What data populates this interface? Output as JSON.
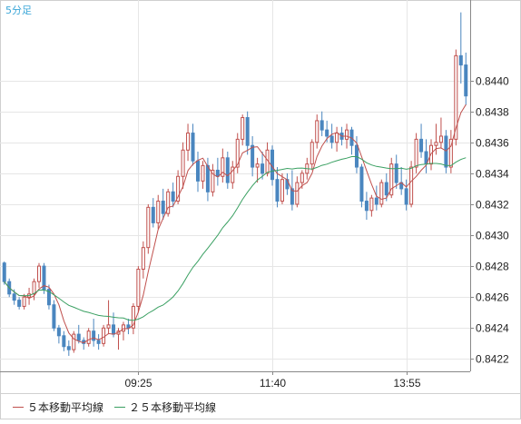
{
  "timeframe": "5分足",
  "colors": {
    "up": "#c0504d",
    "down": "#4a86bf",
    "ma5": "#c0504d",
    "ma25": "#3aa062",
    "grid": "#e6e6e6",
    "axis": "#888888",
    "text": "#222222"
  },
  "legend": {
    "ma5_label": "５本移動平均線",
    "ma25_label": "２５本移動平均線"
  },
  "chart_data": {
    "type": "candlestick",
    "title": "",
    "xlabel": "",
    "ylabel": "",
    "ylim": [
      0.84212,
      0.84452
    ],
    "y_ticks": [
      "0.8422",
      "0.8424",
      "0.8426",
      "0.8428",
      "0.8430",
      "0.8432",
      "0.8434",
      "0.8436",
      "0.8438",
      "0.8440"
    ],
    "x_ticks": [
      {
        "label": "09:25",
        "index": 27
      },
      {
        "label": "11:40",
        "index": 54
      },
      {
        "label": "13:55",
        "index": 81
      }
    ],
    "grid": true,
    "legend_position": "bottom-left",
    "candles": [
      [
        0.84282,
        0.84283,
        0.84268,
        0.8427
      ],
      [
        0.8427,
        0.84272,
        0.8426,
        0.84262
      ],
      [
        0.84262,
        0.84265,
        0.84255,
        0.84258
      ],
      [
        0.84258,
        0.8426,
        0.84252,
        0.84254
      ],
      [
        0.84254,
        0.84262,
        0.84252,
        0.8426
      ],
      [
        0.8426,
        0.84266,
        0.84255,
        0.84262
      ],
      [
        0.84262,
        0.84272,
        0.84258,
        0.8427
      ],
      [
        0.8427,
        0.84282,
        0.84266,
        0.8428
      ],
      [
        0.8428,
        0.84282,
        0.84262,
        0.84265
      ],
      [
        0.84265,
        0.84268,
        0.84252,
        0.84255
      ],
      [
        0.84255,
        0.84258,
        0.84238,
        0.8424
      ],
      [
        0.8424,
        0.84242,
        0.8423,
        0.84235
      ],
      [
        0.84235,
        0.84238,
        0.84225,
        0.84228
      ],
      [
        0.84228,
        0.84232,
        0.84222,
        0.84226
      ],
      [
        0.84226,
        0.84238,
        0.84224,
        0.84236
      ],
      [
        0.84236,
        0.84242,
        0.8423,
        0.84232
      ],
      [
        0.84232,
        0.84234,
        0.84226,
        0.8423
      ],
      [
        0.8423,
        0.8424,
        0.84228,
        0.84238
      ],
      [
        0.84238,
        0.84246,
        0.84228,
        0.84232
      ],
      [
        0.84232,
        0.84236,
        0.84226,
        0.8423
      ],
      [
        0.8423,
        0.84242,
        0.84228,
        0.8424
      ],
      [
        0.8424,
        0.84258,
        0.84236,
        0.84242
      ],
      [
        0.84242,
        0.8425,
        0.84234,
        0.84236
      ],
      [
        0.84236,
        0.8424,
        0.84226,
        0.84238
      ],
      [
        0.84238,
        0.84244,
        0.84232,
        0.84242
      ],
      [
        0.84242,
        0.84246,
        0.84236,
        0.8424
      ],
      [
        0.8424,
        0.84256,
        0.84236,
        0.84254
      ],
      [
        0.84254,
        0.8428,
        0.8425,
        0.84278
      ],
      [
        0.84278,
        0.84296,
        0.84272,
        0.84292
      ],
      [
        0.84292,
        0.8432,
        0.84288,
        0.84318
      ],
      [
        0.84318,
        0.84324,
        0.84305,
        0.84308
      ],
      [
        0.84308,
        0.84326,
        0.84304,
        0.84322
      ],
      [
        0.84322,
        0.8433,
        0.8431,
        0.84314
      ],
      [
        0.84314,
        0.8433,
        0.84312,
        0.84328
      ],
      [
        0.84328,
        0.84334,
        0.84318,
        0.84322
      ],
      [
        0.84322,
        0.84342,
        0.8432,
        0.84338
      ],
      [
        0.84338,
        0.8436,
        0.8433,
        0.84355
      ],
      [
        0.84355,
        0.84372,
        0.84348,
        0.84366
      ],
      [
        0.84366,
        0.84372,
        0.84345,
        0.84348
      ],
      [
        0.84348,
        0.84354,
        0.84328,
        0.84335
      ],
      [
        0.84335,
        0.84348,
        0.8433,
        0.84345
      ],
      [
        0.84345,
        0.8435,
        0.84322,
        0.84328
      ],
      [
        0.84328,
        0.84346,
        0.84325,
        0.84342
      ],
      [
        0.84342,
        0.8435,
        0.84332,
        0.84338
      ],
      [
        0.84338,
        0.84356,
        0.84334,
        0.8435
      ],
      [
        0.8435,
        0.84354,
        0.8433,
        0.84334
      ],
      [
        0.84334,
        0.84348,
        0.8433,
        0.84344
      ],
      [
        0.84344,
        0.84366,
        0.8434,
        0.84362
      ],
      [
        0.84362,
        0.84378,
        0.84358,
        0.84376
      ],
      [
        0.84376,
        0.8438,
        0.84352,
        0.84358
      ],
      [
        0.84358,
        0.84364,
        0.84338,
        0.84344
      ],
      [
        0.84344,
        0.8435,
        0.84334,
        0.84346
      ],
      [
        0.84346,
        0.84354,
        0.84336,
        0.8434
      ],
      [
        0.8434,
        0.8436,
        0.84338,
        0.84355
      ],
      [
        0.84355,
        0.84358,
        0.84332,
        0.84336
      ],
      [
        0.84336,
        0.84344,
        0.84318,
        0.84322
      ],
      [
        0.84322,
        0.8434,
        0.8432,
        0.84336
      ],
      [
        0.84336,
        0.8434,
        0.84326,
        0.8433
      ],
      [
        0.8433,
        0.84342,
        0.84316,
        0.8432
      ],
      [
        0.8432,
        0.84338,
        0.84318,
        0.84334
      ],
      [
        0.84334,
        0.84342,
        0.8433,
        0.8434
      ],
      [
        0.8434,
        0.8435,
        0.84336,
        0.84346
      ],
      [
        0.84346,
        0.84362,
        0.84342,
        0.8436
      ],
      [
        0.8436,
        0.84378,
        0.84356,
        0.84374
      ],
      [
        0.84374,
        0.8438,
        0.84364,
        0.84368
      ],
      [
        0.84368,
        0.84374,
        0.8436,
        0.84364
      ],
      [
        0.84364,
        0.84372,
        0.84356,
        0.8436
      ],
      [
        0.8436,
        0.8437,
        0.84354,
        0.84366
      ],
      [
        0.84366,
        0.8437,
        0.84358,
        0.84362
      ],
      [
        0.84362,
        0.84372,
        0.84356,
        0.84368
      ],
      [
        0.84368,
        0.8437,
        0.84352,
        0.84358
      ],
      [
        0.84358,
        0.84364,
        0.8434,
        0.84344
      ],
      [
        0.84344,
        0.84346,
        0.84318,
        0.84322
      ],
      [
        0.84322,
        0.84328,
        0.8431,
        0.84316
      ],
      [
        0.84316,
        0.84326,
        0.84312,
        0.84324
      ],
      [
        0.84324,
        0.84332,
        0.84316,
        0.8432
      ],
      [
        0.8432,
        0.84336,
        0.84318,
        0.84334
      ],
      [
        0.84334,
        0.8434,
        0.84322,
        0.84326
      ],
      [
        0.84326,
        0.8435,
        0.84324,
        0.84346
      ],
      [
        0.84346,
        0.84352,
        0.8433,
        0.84334
      ],
      [
        0.84334,
        0.84344,
        0.84326,
        0.8433
      ],
      [
        0.8433,
        0.84336,
        0.84316,
        0.8432
      ],
      [
        0.8432,
        0.84348,
        0.84318,
        0.84344
      ],
      [
        0.84344,
        0.84366,
        0.8434,
        0.84362
      ],
      [
        0.84362,
        0.84372,
        0.8435,
        0.84354
      ],
      [
        0.84354,
        0.84362,
        0.8434,
        0.84346
      ],
      [
        0.84346,
        0.84362,
        0.84342,
        0.84358
      ],
      [
        0.84358,
        0.84372,
        0.84352,
        0.8436
      ],
      [
        0.8436,
        0.84376,
        0.84356,
        0.84364
      ],
      [
        0.84364,
        0.84368,
        0.8434,
        0.84344
      ],
      [
        0.84344,
        0.84368,
        0.8434,
        0.84362
      ],
      [
        0.84362,
        0.8442,
        0.84358,
        0.84416
      ],
      [
        0.84416,
        0.84444,
        0.84398,
        0.8441
      ],
      [
        0.8441,
        0.84418,
        0.84384,
        0.8439
      ]
    ],
    "series": [
      {
        "name": "５本移動平均線",
        "type": "line",
        "period": 5
      },
      {
        "name": "２５本移動平均線",
        "type": "line",
        "period": 25
      }
    ]
  }
}
